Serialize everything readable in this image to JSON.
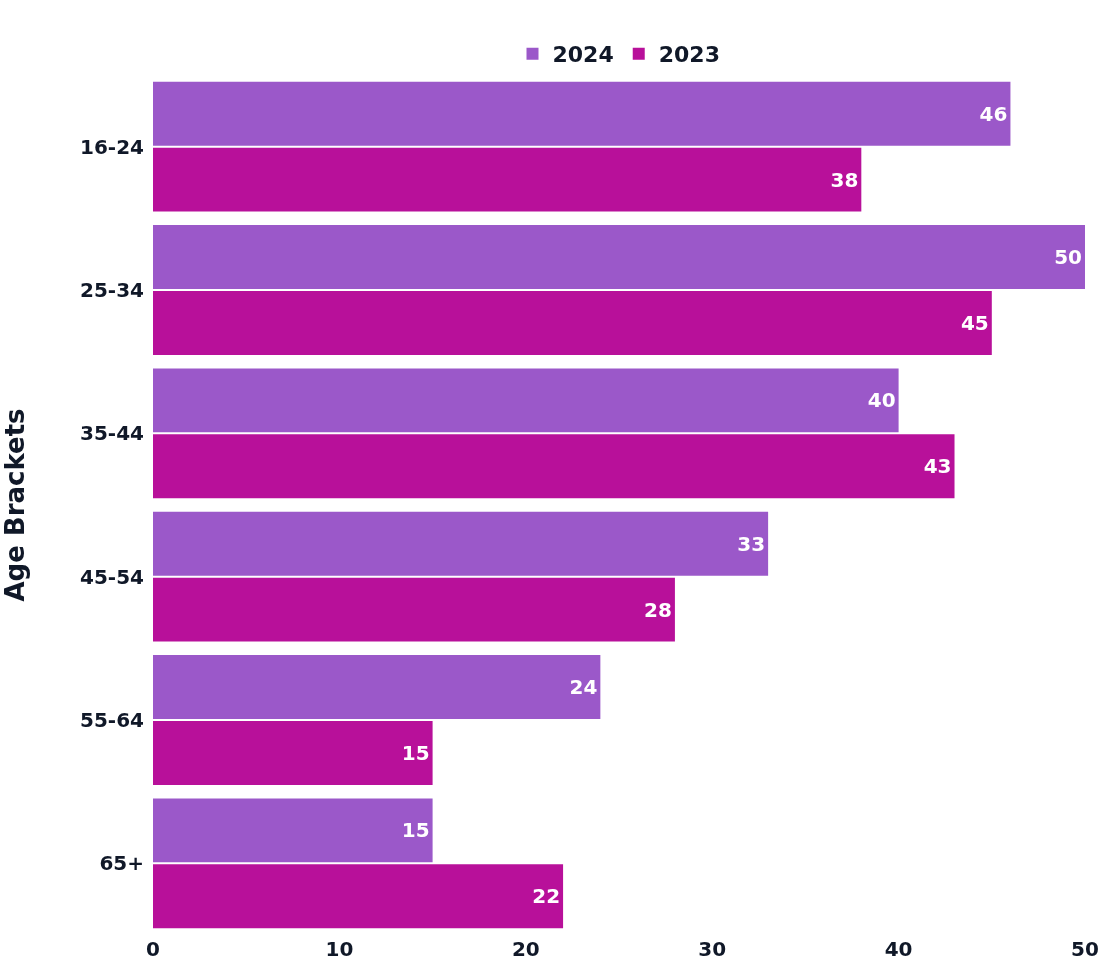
{
  "chart_data": {
    "type": "bar",
    "orientation": "horizontal",
    "ylabel": "Age Brackets",
    "categories": [
      "16-24",
      "25-34",
      "35-44",
      "45-54",
      "55-64",
      "65+"
    ],
    "series": [
      {
        "name": "2024",
        "color": "#9b58c9",
        "values": [
          46,
          50,
          40,
          33,
          24,
          15
        ]
      },
      {
        "name": "2023",
        "color": "#b8109a",
        "values": [
          38,
          45,
          43,
          28,
          15,
          22
        ]
      }
    ],
    "xlim": [
      0,
      50
    ],
    "xticks": [
      0,
      10,
      20,
      30,
      40,
      50
    ],
    "legend": "top",
    "data_labels": true
  }
}
